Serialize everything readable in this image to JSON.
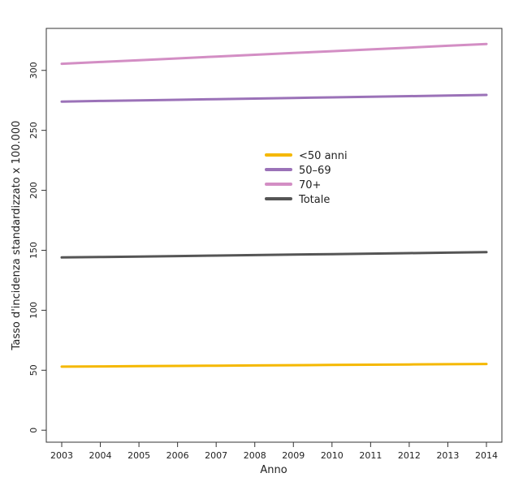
{
  "chart_data": {
    "type": "line",
    "title": "",
    "xlabel": "Anno",
    "ylabel": "Tasso d'incidenza standardizzato x 100.000",
    "x": [
      2003,
      2004,
      2005,
      2006,
      2007,
      2008,
      2009,
      2010,
      2011,
      2012,
      2013,
      2014
    ],
    "xlim": [
      2002.6,
      2014.4
    ],
    "ylim": [
      -10,
      335
    ],
    "y_ticks": [
      0,
      50,
      100,
      150,
      200,
      250,
      300
    ],
    "y_tick_labels": [
      "0",
      "50",
      "100",
      "150",
      "200",
      "250",
      "300"
    ],
    "x_tick_labels": [
      "2003",
      "2004",
      "2005",
      "2006",
      "2007",
      "2008",
      "2009",
      "2010",
      "2011",
      "2012",
      "2013",
      "2014"
    ],
    "grid": false,
    "legend_position": "center",
    "series": [
      {
        "name": "<50 anni",
        "color": "#f5b800",
        "values": [
          53.0,
          53.2,
          53.4,
          53.6,
          53.8,
          54.0,
          54.2,
          54.4,
          54.6,
          54.8,
          55.0,
          55.2
        ]
      },
      {
        "name": "50–69",
        "color": "#9b72b8",
        "values": [
          274.0,
          274.5,
          275.0,
          275.5,
          276.0,
          276.5,
          277.0,
          277.5,
          278.0,
          278.5,
          279.0,
          279.5
        ]
      },
      {
        "name": "70+",
        "color": "#d38ec4",
        "values": [
          305.5,
          307.0,
          308.5,
          310.0,
          311.5,
          313.0,
          314.5,
          316.0,
          317.5,
          319.0,
          320.5,
          322.0
        ]
      },
      {
        "name": "Totale",
        "color": "#555555",
        "values": [
          144.0,
          144.4,
          144.8,
          145.2,
          145.6,
          146.0,
          146.4,
          146.8,
          147.2,
          147.6,
          148.0,
          148.5
        ]
      }
    ]
  }
}
